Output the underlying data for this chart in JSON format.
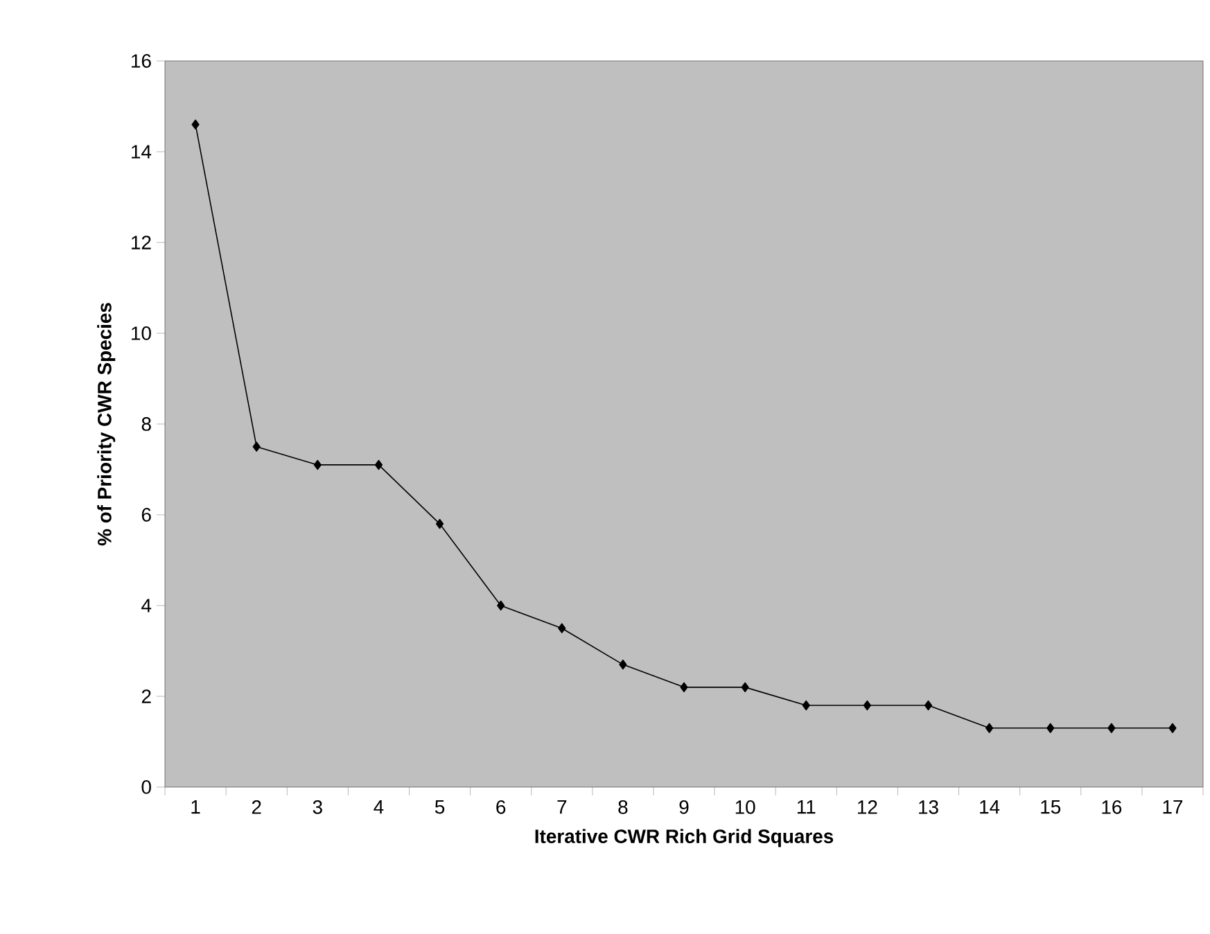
{
  "chart_data": {
    "type": "line",
    "xlabel": "Iterative CWR Rich Grid Squares",
    "ylabel": "% of Priority CWR Species",
    "categories": [
      "1",
      "2",
      "3",
      "4",
      "5",
      "6",
      "7",
      "8",
      "9",
      "10",
      "11",
      "12",
      "13",
      "14",
      "15",
      "16",
      "17"
    ],
    "series": [
      {
        "color": "#000000",
        "values": [
          14.6,
          7.5,
          7.1,
          7.1,
          5.8,
          4.0,
          3.5,
          2.7,
          2.2,
          2.2,
          1.8,
          1.8,
          1.8,
          1.3,
          1.3,
          1.3,
          1.3
        ]
      }
    ],
    "ylim": [
      0,
      16
    ],
    "yticks": [
      0,
      2,
      4,
      6,
      8,
      10,
      12,
      14,
      16
    ],
    "grid": false,
    "marker": "diamond",
    "line_style": "solid"
  }
}
